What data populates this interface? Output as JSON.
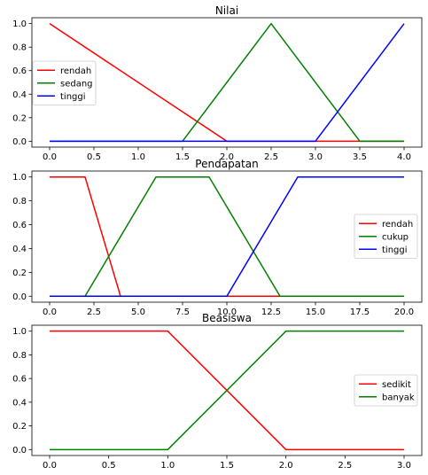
{
  "chart_data": [
    {
      "type": "line",
      "title": "Nilai",
      "xlim": [
        -0.2,
        4.2
      ],
      "ylim": [
        -0.05,
        1.05
      ],
      "xticks": [
        0.0,
        0.5,
        1.0,
        1.5,
        2.0,
        2.5,
        3.0,
        3.5,
        4.0
      ],
      "xtick_labels": [
        "0.0",
        "0.5",
        "1.0",
        "1.5",
        "2.0",
        "2.5",
        "3.0",
        "3.5",
        "4.0"
      ],
      "yticks": [
        0.0,
        0.2,
        0.4,
        0.6,
        0.8,
        1.0
      ],
      "ytick_labels": [
        "0.0",
        "0.2",
        "0.4",
        "0.6",
        "0.8",
        "1.0"
      ],
      "legend_position": "center-left",
      "series": [
        {
          "name": "rendah",
          "color": "#ff0000",
          "x": [
            0,
            2,
            4
          ],
          "y": [
            1,
            0,
            0
          ]
        },
        {
          "name": "sedang",
          "color": "#008000",
          "x": [
            0,
            1.5,
            2.5,
            3.5,
            4
          ],
          "y": [
            0,
            0,
            1,
            0,
            0
          ]
        },
        {
          "name": "tinggi",
          "color": "#0000ff",
          "x": [
            0,
            3,
            4
          ],
          "y": [
            0,
            0,
            1
          ]
        }
      ]
    },
    {
      "type": "line",
      "title": "Pendapatan",
      "xlim": [
        -1,
        21
      ],
      "ylim": [
        -0.05,
        1.05
      ],
      "xticks": [
        0.0,
        2.5,
        5.0,
        7.5,
        10.0,
        12.5,
        15.0,
        17.5,
        20.0
      ],
      "xtick_labels": [
        "0.0",
        "2.5",
        "5.0",
        "7.5",
        "10.0",
        "12.5",
        "15.0",
        "17.5",
        "20.0"
      ],
      "yticks": [
        0.0,
        0.2,
        0.4,
        0.6,
        0.8,
        1.0
      ],
      "ytick_labels": [
        "0.0",
        "0.2",
        "0.4",
        "0.6",
        "0.8",
        "1.0"
      ],
      "legend_position": "center-right",
      "series": [
        {
          "name": "rendah",
          "color": "#ff0000",
          "x": [
            0,
            2,
            4,
            20
          ],
          "y": [
            1,
            1,
            0,
            0
          ]
        },
        {
          "name": "cukup",
          "color": "#008000",
          "x": [
            0,
            2,
            6,
            9,
            13,
            20
          ],
          "y": [
            0,
            0,
            1,
            1,
            0,
            0
          ]
        },
        {
          "name": "tinggi",
          "color": "#0000ff",
          "x": [
            0,
            10,
            14,
            20
          ],
          "y": [
            0,
            0,
            1,
            1
          ]
        }
      ]
    },
    {
      "type": "line",
      "title": "Beasiswa",
      "xlim": [
        -0.15,
        3.15
      ],
      "ylim": [
        -0.05,
        1.05
      ],
      "xticks": [
        0.0,
        0.5,
        1.0,
        1.5,
        2.0,
        2.5,
        3.0
      ],
      "xtick_labels": [
        "0.0",
        "0.5",
        "1.0",
        "1.5",
        "2.0",
        "2.5",
        "3.0"
      ],
      "yticks": [
        0.0,
        0.2,
        0.4,
        0.6,
        0.8,
        1.0
      ],
      "ytick_labels": [
        "0.0",
        "0.2",
        "0.4",
        "0.6",
        "0.8",
        "1.0"
      ],
      "legend_position": "center-right",
      "series": [
        {
          "name": "sedikit",
          "color": "#ff0000",
          "x": [
            0,
            1,
            2,
            3
          ],
          "y": [
            1,
            1,
            0,
            0
          ]
        },
        {
          "name": "banyak",
          "color": "#008000",
          "x": [
            0,
            1,
            2,
            3
          ],
          "y": [
            0,
            0,
            1,
            1
          ]
        }
      ]
    }
  ]
}
